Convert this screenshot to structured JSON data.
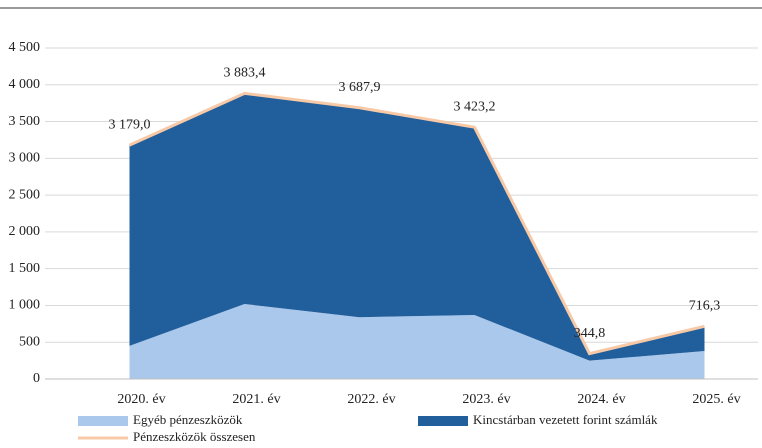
{
  "chart_data": {
    "type": "stacked_area",
    "categories": [
      "2020. év",
      "2021. év",
      "2022. év",
      "2023. év",
      "2024. év",
      "2025. év"
    ],
    "series": [
      {
        "name": "Egyéb pénzeszközök",
        "color": "#a9c8ec",
        "values": [
          450,
          1020,
          840,
          870,
          250,
          380
        ]
      },
      {
        "name": "Kincstárban vezetett forint számlák",
        "color": "#215e9c",
        "values": [
          2729,
          2863.4,
          2847.9,
          2553.2,
          94.8,
          336.3
        ]
      }
    ],
    "total": {
      "name": "Pénzeszközök összesen",
      "color": "#f7c9a6",
      "values": [
        3179.0,
        3883.4,
        3687.9,
        3423.2,
        344.8,
        716.3
      ],
      "value_labels": [
        "3 179,0",
        "3 883,4",
        "3 687,9",
        "3 423,2",
        "344,8",
        "716,3"
      ]
    },
    "ylim": [
      0,
      4500
    ],
    "yticks": [
      0,
      500,
      {
        "value": 1000,
        "label": "1 000"
      },
      {
        "value": 1500,
        "label": "1 500"
      },
      {
        "value": 2000,
        "label": "2 000"
      },
      {
        "value": 2500,
        "label": "2 500"
      },
      {
        "value": 3000,
        "label": "3 000"
      },
      {
        "value": 3500,
        "label": "3 500"
      },
      {
        "value": 4000,
        "label": "4 000"
      },
      {
        "value": 4500,
        "label": "4 500"
      }
    ],
    "grid": true
  }
}
